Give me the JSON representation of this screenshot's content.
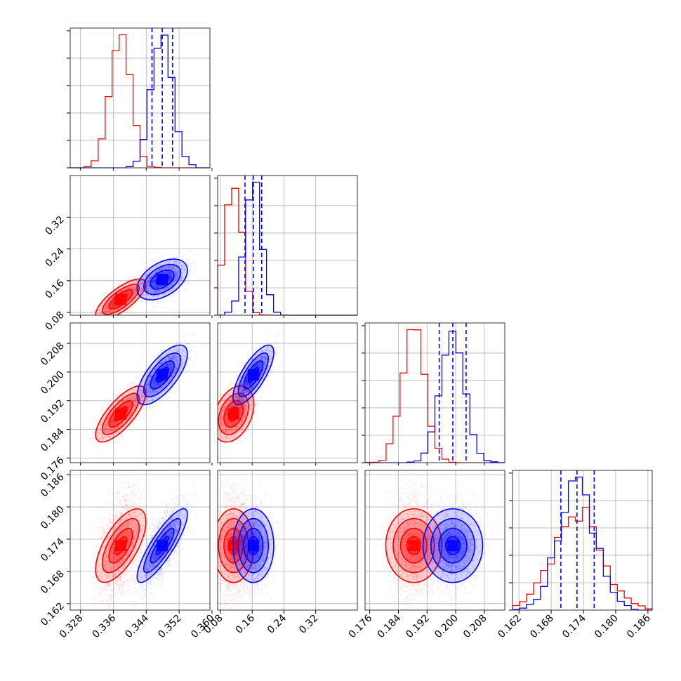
{
  "chart_data": {
    "type": "scatter",
    "title": "",
    "grid": true,
    "colors": {
      "series_a": "#ff0000",
      "series_b": "#0000ff"
    },
    "params": [
      {
        "ticks": [
          0.328,
          0.336,
          0.344,
          0.352,
          0.36
        ],
        "tick_labels": [
          "0.328",
          "0.336",
          "0.344",
          "0.352",
          "0.360"
        ],
        "range": [
          0.3255,
          0.3595
        ]
      },
      {
        "ticks": [
          0.08,
          0.16,
          0.24,
          0.32
        ],
        "tick_labels": [
          "0.08",
          "0.16",
          "0.24",
          "0.32"
        ],
        "range": [
          0.073,
          0.425
        ]
      },
      {
        "ticks": [
          0.176,
          0.184,
          0.192,
          0.2,
          0.208
        ],
        "tick_labels": [
          "0.176",
          "0.184",
          "0.192",
          "0.200",
          "0.208"
        ],
        "range": [
          0.1747,
          0.2137
        ]
      },
      {
        "ticks": [
          0.162,
          0.168,
          0.174,
          0.18,
          0.186
        ],
        "tick_labels": [
          "0.162",
          "0.168",
          "0.174",
          "0.180",
          "0.186"
        ],
        "range": [
          0.1608,
          0.1868
        ]
      }
    ],
    "series": [
      {
        "color_key": "series_a",
        "mean": [
          0.3378,
          0.113,
          0.1883,
          0.1728
        ],
        "sd": [
          0.0025,
          0.021,
          0.0032,
          0.0028
        ],
        "corr": [
          [
            0,
            1,
            0.75
          ],
          [
            0,
            2,
            0.75
          ],
          [
            0,
            3,
            0.65
          ],
          [
            1,
            2,
            0.35
          ]
        ],
        "quantiles": []
      },
      {
        "color_key": "series_b",
        "mean": [
          0.3479,
          0.163,
          0.1992,
          0.1728
        ],
        "sd": [
          0.0025,
          0.021,
          0.0034,
          0.0028
        ],
        "corr": [
          [
            0,
            1,
            0.45
          ],
          [
            0,
            2,
            0.7
          ],
          [
            0,
            3,
            0.85
          ],
          [
            1,
            2,
            0.75
          ]
        ],
        "quantiles": [
          [
            0.3454,
            0.3479,
            0.3504
          ],
          [
            0.142,
            0.163,
            0.184
          ],
          [
            0.1954,
            0.1992,
            0.2029
          ],
          [
            0.1698,
            0.1728,
            0.176
          ]
        ]
      }
    ]
  }
}
